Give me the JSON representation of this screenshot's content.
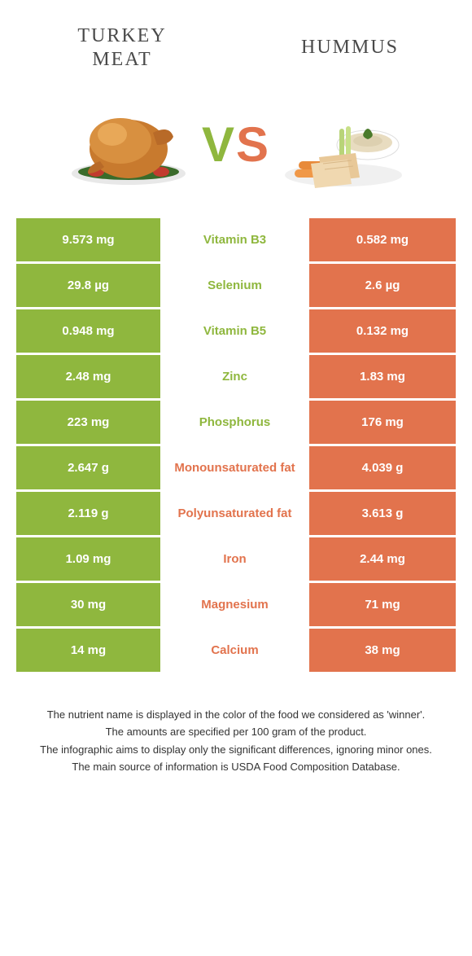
{
  "colors": {
    "green": "#8fb73e",
    "orange": "#e2734d",
    "text": "#4a4a4a"
  },
  "header": {
    "left_title": "TURKEY MEAT",
    "right_title": "HUMMUS",
    "vs_v": "V",
    "vs_s": "S"
  },
  "nutrients": [
    {
      "name": "Vitamin B3",
      "left": "9.573 mg",
      "right": "0.582 mg",
      "winner": "left"
    },
    {
      "name": "Selenium",
      "left": "29.8 µg",
      "right": "2.6 µg",
      "winner": "left"
    },
    {
      "name": "Vitamin B5",
      "left": "0.948 mg",
      "right": "0.132 mg",
      "winner": "left"
    },
    {
      "name": "Zinc",
      "left": "2.48 mg",
      "right": "1.83 mg",
      "winner": "left"
    },
    {
      "name": "Phosphorus",
      "left": "223 mg",
      "right": "176 mg",
      "winner": "left"
    },
    {
      "name": "Monounsaturated fat",
      "left": "2.647 g",
      "right": "4.039 g",
      "winner": "right"
    },
    {
      "name": "Polyunsaturated fat",
      "left": "2.119 g",
      "right": "3.613 g",
      "winner": "right"
    },
    {
      "name": "Iron",
      "left": "1.09 mg",
      "right": "2.44 mg",
      "winner": "right"
    },
    {
      "name": "Magnesium",
      "left": "30 mg",
      "right": "71 mg",
      "winner": "right"
    },
    {
      "name": "Calcium",
      "left": "14 mg",
      "right": "38 mg",
      "winner": "right"
    }
  ],
  "footer": {
    "line1": "The nutrient name is displayed in the color of the food we considered as 'winner'.",
    "line2": "The amounts are specified per 100 gram of the product.",
    "line3": "The infographic aims to display only the significant differences, ignoring minor ones.",
    "line4": "The main source of information is USDA Food Composition Database."
  }
}
